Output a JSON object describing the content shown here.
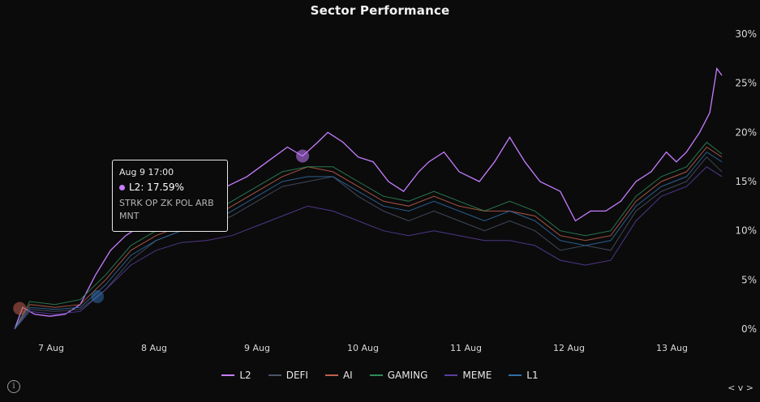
{
  "chart_data": {
    "type": "line",
    "title": "Sector Performance",
    "x_tick_labels": [
      "7 Aug",
      "8 Aug",
      "9 Aug",
      "10 Aug",
      "11 Aug",
      "12 Aug",
      "13 Aug"
    ],
    "y_tick_labels": [
      "0%",
      "5%",
      "10%",
      "15%",
      "20%",
      "25%",
      "30%"
    ],
    "ylim": [
      0,
      30
    ],
    "xlim": [
      0,
      7
    ],
    "grid": false,
    "legend_position": "bottom",
    "x_unit_note": "days since 6 Aug 18:00",
    "series": [
      {
        "name": "L2",
        "color": "#c77dff",
        "x": [
          0.0,
          0.08,
          0.2,
          0.35,
          0.5,
          0.65,
          0.8,
          0.95,
          1.1,
          1.25,
          1.4,
          1.55,
          1.7,
          1.85,
          2.0,
          2.1,
          2.3,
          2.5,
          2.7,
          2.85,
          3.0,
          3.1,
          3.25,
          3.4,
          3.55,
          3.7,
          3.85,
          4.0,
          4.1,
          4.25,
          4.4,
          4.6,
          4.75,
          4.9,
          5.05,
          5.2,
          5.4,
          5.55,
          5.7,
          5.85,
          6.0,
          6.15,
          6.3,
          6.45,
          6.55,
          6.65,
          6.78,
          6.88,
          6.95,
          7.0
        ],
        "y": [
          0,
          2.2,
          1.5,
          1.3,
          1.5,
          2.5,
          5.5,
          8.0,
          9.5,
          10.5,
          11.5,
          12.0,
          13.0,
          13.5,
          14.0,
          14.5,
          15.5,
          17.0,
          18.5,
          17.6,
          19.0,
          20.0,
          19.0,
          17.5,
          17.0,
          15.0,
          14.0,
          16.0,
          17.0,
          18.0,
          16.0,
          15.0,
          17.0,
          19.5,
          17.0,
          15.0,
          14.0,
          11.0,
          12.0,
          12.0,
          13.0,
          15.0,
          16.0,
          18.0,
          17.0,
          18.0,
          20.0,
          22.0,
          26.5,
          25.8
        ]
      },
      {
        "name": "DEFI",
        "color": "#4a5466",
        "x": [
          0.0,
          0.15,
          0.4,
          0.65,
          0.9,
          1.15,
          1.4,
          1.65,
          1.9,
          2.15,
          2.4,
          2.65,
          2.9,
          3.15,
          3.4,
          3.65,
          3.9,
          4.15,
          4.4,
          4.65,
          4.9,
          5.15,
          5.4,
          5.65,
          5.9,
          6.15,
          6.4,
          6.65,
          6.85,
          7.0
        ],
        "y": [
          0,
          2.0,
          1.8,
          2.0,
          4.0,
          7.0,
          9.0,
          10.0,
          10.5,
          11.5,
          13.0,
          14.5,
          15.0,
          15.5,
          13.5,
          12.0,
          11.0,
          12.0,
          11.0,
          10.0,
          11.0,
          10.0,
          8.0,
          8.5,
          8.0,
          12.0,
          14.0,
          15.0,
          17.5,
          16.0
        ]
      },
      {
        "name": "AI",
        "color": "#c0604a",
        "x": [
          0.0,
          0.15,
          0.4,
          0.65,
          0.9,
          1.15,
          1.4,
          1.65,
          1.9,
          2.15,
          2.4,
          2.65,
          2.9,
          3.15,
          3.4,
          3.65,
          3.9,
          4.15,
          4.4,
          4.65,
          4.9,
          5.15,
          5.4,
          5.65,
          5.9,
          6.15,
          6.4,
          6.65,
          6.85,
          7.0
        ],
        "y": [
          0,
          2.5,
          2.2,
          2.5,
          5.0,
          8.0,
          9.5,
          10.5,
          11.0,
          12.5,
          14.0,
          15.5,
          16.5,
          16.0,
          14.5,
          13.0,
          12.5,
          13.5,
          12.5,
          12.0,
          12.0,
          11.5,
          9.5,
          9.0,
          9.5,
          13.0,
          15.0,
          16.0,
          18.5,
          17.5
        ]
      },
      {
        "name": "GAMING",
        "color": "#2e8b57",
        "x": [
          0.0,
          0.15,
          0.4,
          0.65,
          0.9,
          1.15,
          1.4,
          1.65,
          1.9,
          2.15,
          2.4,
          2.65,
          2.9,
          3.15,
          3.4,
          3.65,
          3.9,
          4.15,
          4.4,
          4.65,
          4.9,
          5.15,
          5.4,
          5.65,
          5.9,
          6.15,
          6.4,
          6.65,
          6.85,
          7.0
        ],
        "y": [
          0,
          2.8,
          2.5,
          3.0,
          5.5,
          8.5,
          10.0,
          11.0,
          11.5,
          13.0,
          14.5,
          16.0,
          16.5,
          16.5,
          15.0,
          13.5,
          13.0,
          14.0,
          13.0,
          12.0,
          13.0,
          12.0,
          10.0,
          9.5,
          10.0,
          13.5,
          15.5,
          16.5,
          19.0,
          17.8
        ]
      },
      {
        "name": "MEME",
        "color": "#5b3f9e",
        "x": [
          0.0,
          0.15,
          0.4,
          0.65,
          0.9,
          1.15,
          1.4,
          1.65,
          1.9,
          2.15,
          2.4,
          2.65,
          2.9,
          3.15,
          3.4,
          3.65,
          3.9,
          4.15,
          4.4,
          4.65,
          4.9,
          5.15,
          5.4,
          5.65,
          5.9,
          6.15,
          6.4,
          6.65,
          6.85,
          7.0
        ],
        "y": [
          0,
          1.8,
          1.5,
          1.8,
          4.0,
          6.5,
          8.0,
          8.8,
          9.0,
          9.5,
          10.5,
          11.5,
          12.5,
          12.0,
          11.0,
          10.0,
          9.5,
          10.0,
          9.5,
          9.0,
          9.0,
          8.5,
          7.0,
          6.5,
          7.0,
          11.0,
          13.5,
          14.5,
          16.5,
          15.5
        ]
      },
      {
        "name": "L1",
        "color": "#2f6ea5",
        "x": [
          0.0,
          0.15,
          0.4,
          0.65,
          0.9,
          1.15,
          1.4,
          1.65,
          1.9,
          2.15,
          2.4,
          2.65,
          2.9,
          3.15,
          3.4,
          3.65,
          3.9,
          4.15,
          4.4,
          4.65,
          4.9,
          5.15,
          5.4,
          5.65,
          5.9,
          6.15,
          6.4,
          6.65,
          6.85,
          7.0
        ],
        "y": [
          0,
          2.2,
          2.0,
          2.2,
          4.5,
          7.5,
          9.0,
          10.0,
          10.5,
          12.0,
          13.5,
          15.0,
          15.5,
          15.5,
          14.0,
          12.5,
          12.0,
          13.0,
          12.0,
          11.0,
          12.0,
          11.0,
          9.0,
          8.5,
          9.0,
          12.5,
          14.5,
          15.5,
          18.0,
          17.0
        ]
      }
    ],
    "markers": [
      {
        "series": "AI",
        "x": 0.05,
        "y": 2.1,
        "color": "#c0604a"
      },
      {
        "series": "L1",
        "x": 0.82,
        "y": 3.3,
        "color": "#2f6ea5"
      },
      {
        "series": "L2",
        "x": 2.85,
        "y": 17.6,
        "color": "#c77dff"
      }
    ]
  },
  "tooltip": {
    "time": "Aug 9 17:00",
    "value_label": "L2: 17.59%",
    "dot_color": "#c77dff",
    "members_line1": "STRK OP ZK POL ARB",
    "members_line2": "MNT"
  },
  "legend": [
    {
      "label": "L2",
      "color": "#c77dff"
    },
    {
      "label": "DEFI",
      "color": "#4a5466"
    },
    {
      "label": "AI",
      "color": "#c0604a"
    },
    {
      "label": "GAMING",
      "color": "#2e8b57"
    },
    {
      "label": "MEME",
      "color": "#5b3f9e"
    },
    {
      "label": "L1",
      "color": "#2f6ea5"
    }
  ],
  "info_icon": "info-icon",
  "nav_label": "< v >"
}
